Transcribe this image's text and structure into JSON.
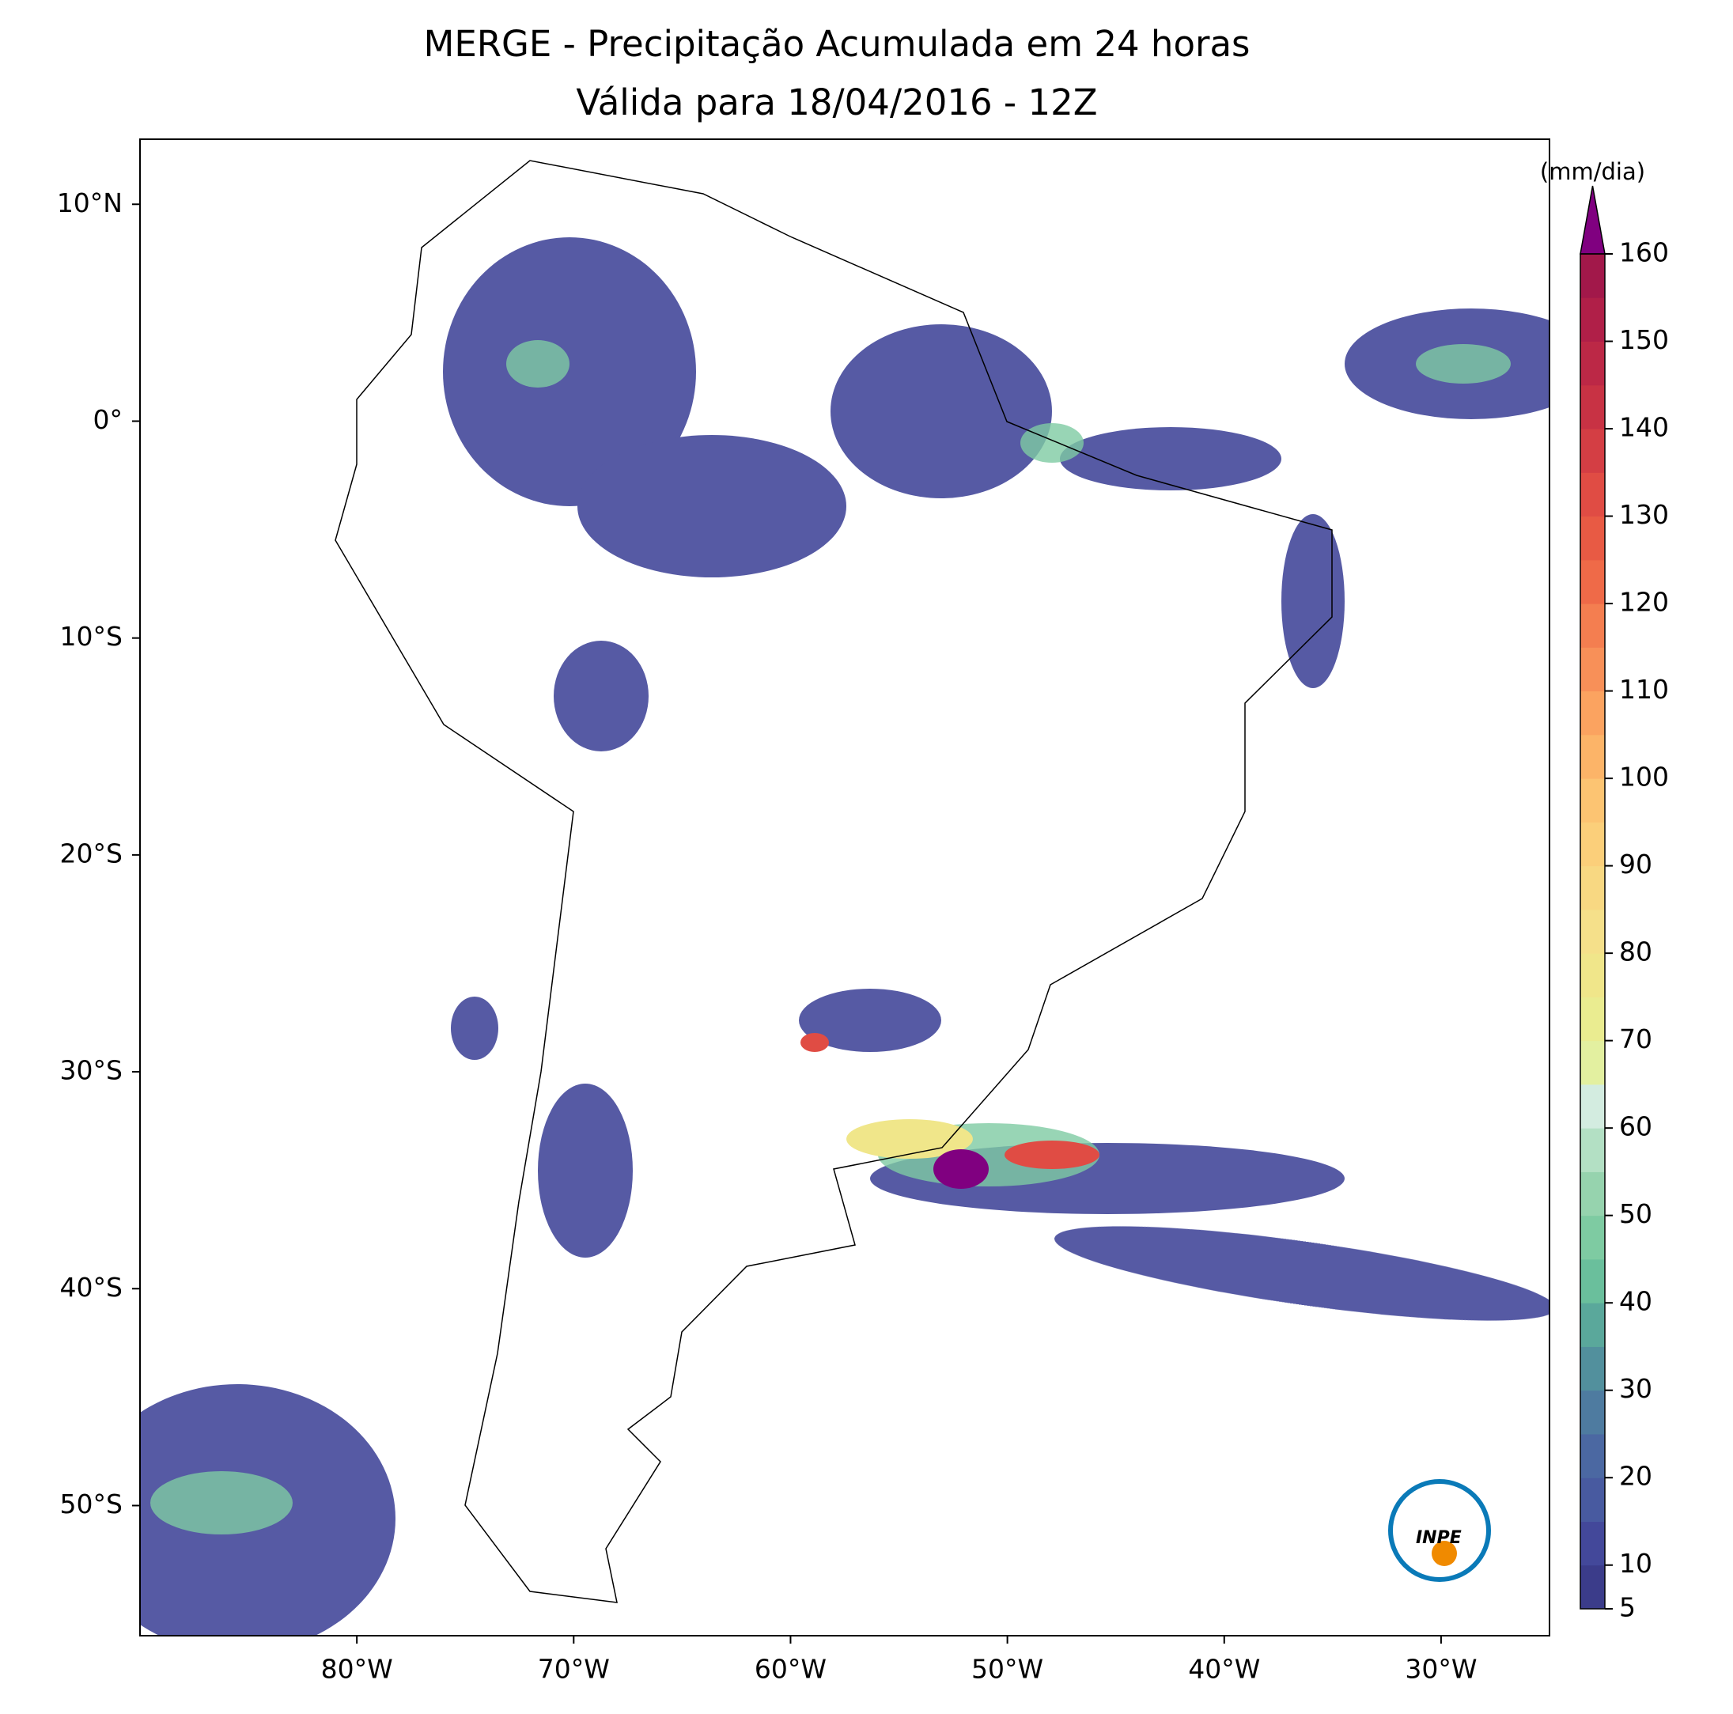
{
  "title": [
    "MERGE - Precipitação Acumulada em 24 horas",
    "Válida para 18/04/2016 - 12Z"
  ],
  "map": {
    "xlim": [
      -90,
      -25
    ],
    "ylim": [
      -56,
      13
    ],
    "xticks": [
      {
        "value": -80,
        "label": "80°W"
      },
      {
        "value": -70,
        "label": "70°W"
      },
      {
        "value": -60,
        "label": "60°W"
      },
      {
        "value": -50,
        "label": "50°W"
      },
      {
        "value": -40,
        "label": "40°W"
      },
      {
        "value": -30,
        "label": "30°W"
      }
    ],
    "yticks": [
      {
        "value": 10,
        "label": "10°N"
      },
      {
        "value": 0,
        "label": "0°"
      },
      {
        "value": -10,
        "label": "10°S"
      },
      {
        "value": -20,
        "label": "20°S"
      },
      {
        "value": -30,
        "label": "30°S"
      },
      {
        "value": -40,
        "label": "40°S"
      },
      {
        "value": -50,
        "label": "50°S"
      }
    ]
  },
  "colorbar": {
    "label": "(mm/dia)",
    "lim": [
      5,
      160
    ],
    "ticks": [
      5,
      10,
      20,
      30,
      40,
      50,
      60,
      70,
      80,
      90,
      100,
      110,
      120,
      130,
      140,
      150,
      160
    ],
    "colors": [
      "#3b3c8a",
      "#43489a",
      "#485aa0",
      "#4b68a2",
      "#4e7ba0",
      "#52909d",
      "#5aa89b",
      "#6abf9c",
      "#7ecba2",
      "#96d3ae",
      "#b3e0c4",
      "#d3ece0",
      "#e3f0a0",
      "#eaec90",
      "#f0e68a",
      "#f5e08a",
      "#f8d882",
      "#fbcf7a",
      "#fcc472",
      "#fcb468",
      "#fba360",
      "#f89058",
      "#f47e50",
      "#ef6a48",
      "#e85a44",
      "#e04c44",
      "#d43e44",
      "#c83244",
      "#bc2846",
      "#b01f48",
      "#a2184a"
    ],
    "extend_color": "#800080"
  },
  "logo": "INPE"
}
